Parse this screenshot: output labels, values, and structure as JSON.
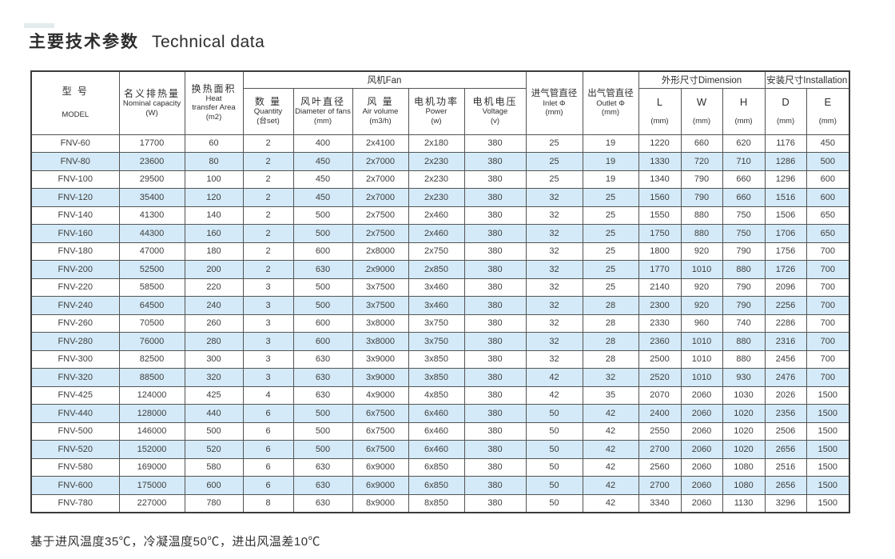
{
  "title": {
    "zh": "主要技术参数",
    "en": "Technical data"
  },
  "note": "基于进风温度35℃，冷凝温度50℃，进出风温差10℃",
  "colors": {
    "stripe_blue": "#d4eaf8",
    "border": "#545454",
    "outer_border": "#3c3c3c",
    "text": "#3e3e3e"
  },
  "table": {
    "groups": {
      "fan": "风机Fan",
      "dimension": "外形尺寸Dimension",
      "installation": "安装尺寸Installation"
    },
    "headers": {
      "model": {
        "zh": "型 号",
        "en": "MODEL"
      },
      "nominal": {
        "zh": "名义排热量",
        "en": "Nominal capacity",
        "unit": "(W)"
      },
      "heat": {
        "zh": "换热面积",
        "en": "Heat\ntransfer Area",
        "unit": "(m2)"
      },
      "quantity": {
        "zh": "数 量",
        "en": "Quantity",
        "unit": "(台set)"
      },
      "diameter": {
        "zh": "风叶直径",
        "en": "Diameter of fans",
        "unit": "(mm)"
      },
      "volume": {
        "zh": "风 量",
        "en": "Air volume",
        "unit": "(m3/h)"
      },
      "power": {
        "zh": "电机功率",
        "en": "Power",
        "unit": "(w)"
      },
      "voltage": {
        "zh": "电机电压",
        "en": "Voltage",
        "unit": "(v)"
      },
      "inlet": {
        "zh": "进气管直径",
        "en": "Inlet  Φ",
        "unit": "(mm)"
      },
      "outlet": {
        "zh": "出气管直径",
        "en": "Outlet  Φ",
        "unit": "(mm)"
      },
      "L": {
        "letter": "L",
        "unit": "(mm)"
      },
      "W": {
        "letter": "W",
        "unit": "(mm)"
      },
      "H": {
        "letter": "H",
        "unit": "(mm)"
      },
      "D": {
        "letter": "D",
        "unit": "(mm)"
      },
      "E": {
        "letter": "E",
        "unit": "(mm)"
      }
    },
    "rows": [
      [
        "FNV-60",
        "17700",
        "60",
        "2",
        "400",
        "2x4100",
        "2x180",
        "380",
        "25",
        "19",
        "1220",
        "660",
        "620",
        "1176",
        "450"
      ],
      [
        "FNV-80",
        "23600",
        "80",
        "2",
        "450",
        "2x7000",
        "2x230",
        "380",
        "25",
        "19",
        "1330",
        "720",
        "710",
        "1286",
        "500"
      ],
      [
        "FNV-100",
        "29500",
        "100",
        "2",
        "450",
        "2x7000",
        "2x230",
        "380",
        "25",
        "19",
        "1340",
        "790",
        "660",
        "1296",
        "600"
      ],
      [
        "FNV-120",
        "35400",
        "120",
        "2",
        "450",
        "2x7000",
        "2x230",
        "380",
        "32",
        "25",
        "1560",
        "790",
        "660",
        "1516",
        "600"
      ],
      [
        "FNV-140",
        "41300",
        "140",
        "2",
        "500",
        "2x7500",
        "2x460",
        "380",
        "32",
        "25",
        "1550",
        "880",
        "750",
        "1506",
        "650"
      ],
      [
        "FNV-160",
        "44300",
        "160",
        "2",
        "500",
        "2x7500",
        "2x460",
        "380",
        "32",
        "25",
        "1750",
        "880",
        "750",
        "1706",
        "650"
      ],
      [
        "FNV-180",
        "47000",
        "180",
        "2",
        "600",
        "2x8000",
        "2x750",
        "380",
        "32",
        "25",
        "1800",
        "920",
        "790",
        "1756",
        "700"
      ],
      [
        "FNV-200",
        "52500",
        "200",
        "2",
        "630",
        "2x9000",
        "2x850",
        "380",
        "32",
        "25",
        "1770",
        "1010",
        "880",
        "1726",
        "700"
      ],
      [
        "FNV-220",
        "58500",
        "220",
        "3",
        "500",
        "3x7500",
        "3x460",
        "380",
        "32",
        "25",
        "2140",
        "920",
        "790",
        "2096",
        "700"
      ],
      [
        "FNV-240",
        "64500",
        "240",
        "3",
        "500",
        "3x7500",
        "3x460",
        "380",
        "32",
        "28",
        "2300",
        "920",
        "790",
        "2256",
        "700"
      ],
      [
        "FNV-260",
        "70500",
        "260",
        "3",
        "600",
        "3x8000",
        "3x750",
        "380",
        "32",
        "28",
        "2330",
        "960",
        "740",
        "2286",
        "700"
      ],
      [
        "FNV-280",
        "76000",
        "280",
        "3",
        "600",
        "3x8000",
        "3x750",
        "380",
        "32",
        "28",
        "2360",
        "1010",
        "880",
        "2316",
        "700"
      ],
      [
        "FNV-300",
        "82500",
        "300",
        "3",
        "630",
        "3x9000",
        "3x850",
        "380",
        "32",
        "28",
        "2500",
        "1010",
        "880",
        "2456",
        "700"
      ],
      [
        "FNV-320",
        "88500",
        "320",
        "3",
        "630",
        "3x9000",
        "3x850",
        "380",
        "42",
        "32",
        "2520",
        "1010",
        "930",
        "2476",
        "700"
      ],
      [
        "FNV-425",
        "124000",
        "425",
        "4",
        "630",
        "4x9000",
        "4x850",
        "380",
        "42",
        "35",
        "2070",
        "2060",
        "1030",
        "2026",
        "1500"
      ],
      [
        "FNV-440",
        "128000",
        "440",
        "6",
        "500",
        "6x7500",
        "6x460",
        "380",
        "50",
        "42",
        "2400",
        "2060",
        "1020",
        "2356",
        "1500"
      ],
      [
        "FNV-500",
        "146000",
        "500",
        "6",
        "500",
        "6x7500",
        "6x460",
        "380",
        "50",
        "42",
        "2550",
        "2060",
        "1020",
        "2506",
        "1500"
      ],
      [
        "FNV-520",
        "152000",
        "520",
        "6",
        "500",
        "6x7500",
        "6x460",
        "380",
        "50",
        "42",
        "2700",
        "2060",
        "1020",
        "2656",
        "1500"
      ],
      [
        "FNV-580",
        "169000",
        "580",
        "6",
        "630",
        "6x9000",
        "6x850",
        "380",
        "50",
        "42",
        "2560",
        "2060",
        "1080",
        "2516",
        "1500"
      ],
      [
        "FNV-600",
        "175000",
        "600",
        "6",
        "630",
        "6x9000",
        "6x850",
        "380",
        "50",
        "42",
        "2700",
        "2060",
        "1080",
        "2656",
        "1500"
      ],
      [
        "FNV-780",
        "227000",
        "780",
        "8",
        "630",
        "8x9000",
        "8x850",
        "380",
        "50",
        "42",
        "3340",
        "2060",
        "1130",
        "3296",
        "1500"
      ]
    ]
  }
}
